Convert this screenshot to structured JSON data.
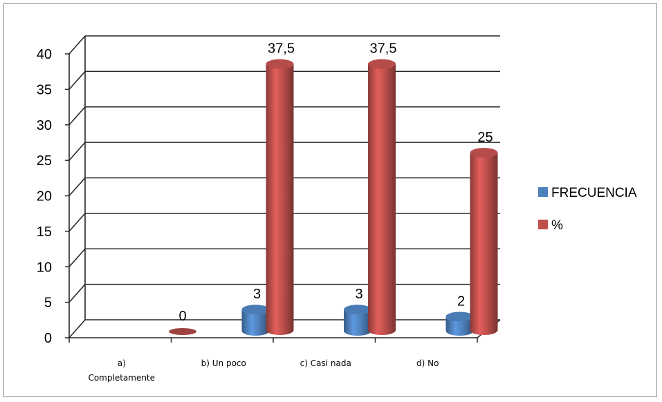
{
  "chart_data": {
    "type": "bar",
    "variant": "3d-clustered-cylinder",
    "title": "",
    "xlabel": "",
    "ylabel": "",
    "categories": [
      [
        "a)",
        "Completamente"
      ],
      [
        "b) Un poco"
      ],
      [
        "c) Casi nada"
      ],
      [
        "d) No"
      ]
    ],
    "series": [
      {
        "name": "FRECUENCIA",
        "color": "#4f81bd",
        "values": [
          0,
          3,
          3,
          2
        ],
        "data_labels": [
          "",
          "3",
          "3",
          "2"
        ]
      },
      {
        "name": "%",
        "color": "#c0504d",
        "values": [
          0,
          37.5,
          37.5,
          25
        ],
        "data_labels": [
          "0",
          "37,5",
          "37,5",
          "25"
        ]
      }
    ],
    "ylim": [
      0,
      40
    ],
    "yticks": [
      0,
      5,
      10,
      15,
      20,
      25,
      30,
      35,
      40
    ],
    "grid": true,
    "legend": "right"
  }
}
